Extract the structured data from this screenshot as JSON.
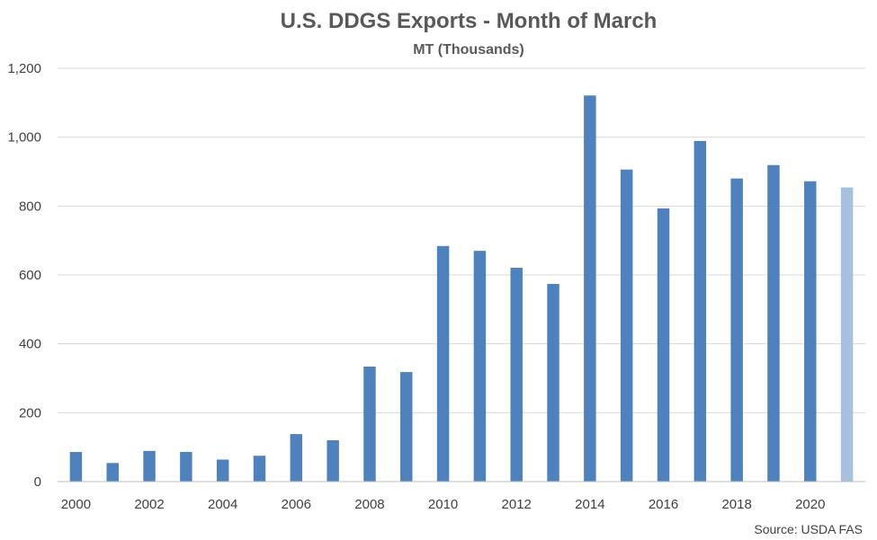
{
  "chart_data": {
    "type": "bar",
    "title": "U.S. DDGS Exports - Month of March",
    "subtitle": "MT (Thousands)",
    "xlabel": "",
    "ylabel": "",
    "ylim": [
      0,
      1200
    ],
    "y_ticks": [
      0,
      200,
      400,
      600,
      800,
      1000,
      1200
    ],
    "y_tick_labels": [
      "0",
      "200",
      "400",
      "600",
      "800",
      "1,000",
      "1,200"
    ],
    "categories": [
      2000,
      2001,
      2002,
      2003,
      2004,
      2005,
      2006,
      2007,
      2008,
      2009,
      2010,
      2011,
      2012,
      2013,
      2014,
      2015,
      2016,
      2017,
      2018,
      2019,
      2020,
      2021
    ],
    "x_tick_labels": [
      "2000",
      "",
      "2002",
      "",
      "2004",
      "",
      "2006",
      "",
      "2008",
      "",
      "2010",
      "",
      "2012",
      "",
      "2014",
      "",
      "2016",
      "",
      "2018",
      "",
      "2020",
      ""
    ],
    "values": [
      86,
      54,
      89,
      86,
      64,
      75,
      138,
      120,
      334,
      318,
      684,
      670,
      621,
      574,
      1121,
      906,
      793,
      989,
      880,
      919,
      872,
      854
    ],
    "colors": {
      "primary": "#4f81bd",
      "highlight": "#a7c0de"
    },
    "highlight_index": 21,
    "grid": true,
    "legend": "none",
    "source": "Source: USDA FAS"
  }
}
